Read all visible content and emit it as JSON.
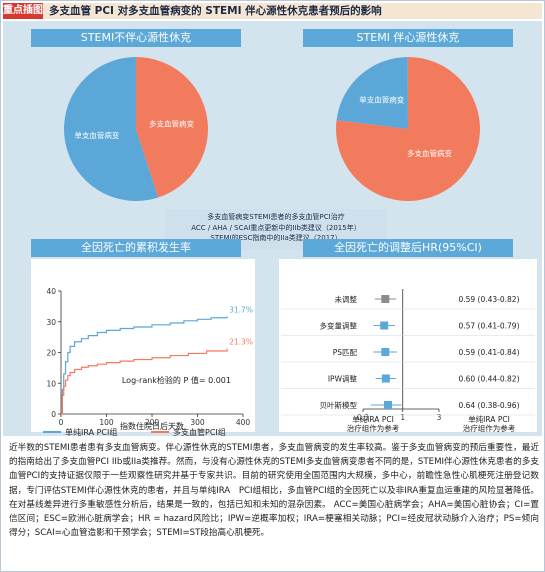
{
  "header": {
    "tag": "重点插图",
    "title": "多支血管 PCI 对多支血管病变的 STEMI 伴心源性休克患者预后的影响"
  },
  "pie_left": {
    "title": "STEMI不伴心源性休克"
  },
  "pie_right": {
    "title": "STEMI 伴心源性休克"
  },
  "note": {
    "lines": [
      "多支血管病变STEMI患者的多支血管PCI治疗",
      "ACC / AHA / SCAI重点更新中的IIb类建议（2015年）",
      "STEMI的ESC指南中的IIa类建议（2017）"
    ]
  },
  "km": {
    "title": "全因死亡的累积发生率",
    "annotation": "Log-rank检验的 P 值= 0.001"
  },
  "forest": {
    "title": "全因死亡的调整后HR(95%CI)",
    "left_label_1": "单纯IRA PCI",
    "left_label_2": "治疗组作为参考",
    "right_label_1": "单纯IRA PCI",
    "right_label_2": "治疗组作为参考"
  },
  "caption": {
    "text": "近半数的STEMI患者患有多支血管病变。伴心源性休克的STEMI患者，多支血管病变的发生率较高。鉴于多支血管病变的预后重要性，最近的指南给出了多支血管PCI IIb或IIa类推荐。然而，与没有心源性休克的STEMI多支血管病变患者不同的是，STEMI伴心源性休克患者的多支血管PCI的支持证据仅限于一些观察性研究并基于专家共识。目前的研究使用全国范围内大规模，多中心，前瞻性急性心肌梗死注册登记数据，专门评估STEMI伴心源性休克的患者，并且与单纯IRA　PCI组相比，多血管PCI组的全因死亡以及非IRA重复血运重建的风险显著降低。在对基线差异进行多重敏感性分析后，结果是一致的，包括已知和未知的混杂因素。 ACC=美国心脏病学会；AHA=美国心脏协会；CI=置信区间；ESC=欧洲心脏病学会；HR = hazard风险比；IPW=逆概率加权；IRA=梗塞相关动脉；PCI=经皮冠状动脉介入治疗；PS=倾向得分；SCAI=心血管造影和干预学会；STEMI=ST段抬高心肌梗死。"
  },
  "colors": {
    "blue": "#5ba7d8",
    "orange": "#f27b5e",
    "gray": "#8c8c8c",
    "grid_blue": "#5ba7d8"
  },
  "chart_data": [
    {
      "type": "pie",
      "title": "STEMI不伴心源性休克",
      "labels": [
        "单支血管病变",
        "多支血管病变"
      ],
      "values": [
        55,
        45
      ],
      "colors": [
        "#5ba7d8",
        "#f27b5e"
      ]
    },
    {
      "type": "pie",
      "title": "STEMI 伴心源性休克",
      "labels": [
        "单支血管病变",
        "多支血管病变"
      ],
      "values": [
        23,
        77
      ],
      "colors": [
        "#5ba7d8",
        "#f27b5e"
      ]
    },
    {
      "type": "line",
      "title": "全因死亡的累积发生率",
      "xlabel": "指数住院日后天数",
      "ylabel": "",
      "xlim": [
        0,
        400
      ],
      "ylim": [
        0,
        40
      ],
      "xticks": [
        0,
        100,
        200,
        300,
        400
      ],
      "yticks": [
        0,
        10,
        20,
        30,
        40
      ],
      "series": [
        {
          "name": "单纯IRA PCI组",
          "color": "#5ba7d8",
          "end_label": "31.7%",
          "points": [
            [
              0,
              0
            ],
            [
              3,
              8
            ],
            [
              6,
              13
            ],
            [
              10,
              17
            ],
            [
              15,
              20
            ],
            [
              20,
              22
            ],
            [
              30,
              23.5
            ],
            [
              45,
              24.5
            ],
            [
              60,
              25.5
            ],
            [
              80,
              26.5
            ],
            [
              100,
              27.2
            ],
            [
              130,
              27.8
            ],
            [
              160,
              28.3
            ],
            [
              200,
              29
            ],
            [
              240,
              29.6
            ],
            [
              270,
              30.3
            ],
            [
              300,
              30.8
            ],
            [
              330,
              31.3
            ],
            [
              365,
              31.7
            ]
          ]
        },
        {
          "name": "多支血管PCI组",
          "color": "#f27b5e",
          "end_label": "21.3%",
          "points": [
            [
              0,
              0
            ],
            [
              3,
              6
            ],
            [
              6,
              9
            ],
            [
              10,
              11
            ],
            [
              15,
              12.5
            ],
            [
              20,
              13.5
            ],
            [
              30,
              14.5
            ],
            [
              45,
              15.2
            ],
            [
              60,
              15.7
            ],
            [
              80,
              16.2
            ],
            [
              100,
              16.7
            ],
            [
              130,
              17.2
            ],
            [
              160,
              17.7
            ],
            [
              200,
              18.3
            ],
            [
              240,
              19
            ],
            [
              280,
              19.7
            ],
            [
              320,
              20.5
            ],
            [
              365,
              21.3
            ]
          ]
        }
      ]
    },
    {
      "type": "forest",
      "title": "全因死亡的调整后HR(95%CI)",
      "xscale": "log",
      "xlim": [
        0.3,
        3
      ],
      "xticks": [
        0.3,
        1,
        3
      ],
      "rows": [
        {
          "label": "未调整",
          "hr": 0.59,
          "lo": 0.43,
          "hi": 0.82,
          "text": "0.59 (0.43-0.82)",
          "color": "#8c8c8c"
        },
        {
          "label": "多变量调整",
          "hr": 0.57,
          "lo": 0.41,
          "hi": 0.79,
          "text": "0.57 (0.41-0.79)",
          "color": "#5ba7d8"
        },
        {
          "label": "PS匹配",
          "hr": 0.59,
          "lo": 0.41,
          "hi": 0.84,
          "text": "0.59 (0.41-0.84)",
          "color": "#5ba7d8"
        },
        {
          "label": "IPW调整",
          "hr": 0.6,
          "lo": 0.44,
          "hi": 0.82,
          "text": "0.60 (0.44-0.82)",
          "color": "#5ba7d8"
        },
        {
          "label": "贝叶斯模型",
          "hr": 0.64,
          "lo": 0.38,
          "hi": 0.96,
          "text": "0.64 (0.38-0.96)",
          "color": "#5ba7d8"
        }
      ]
    }
  ]
}
